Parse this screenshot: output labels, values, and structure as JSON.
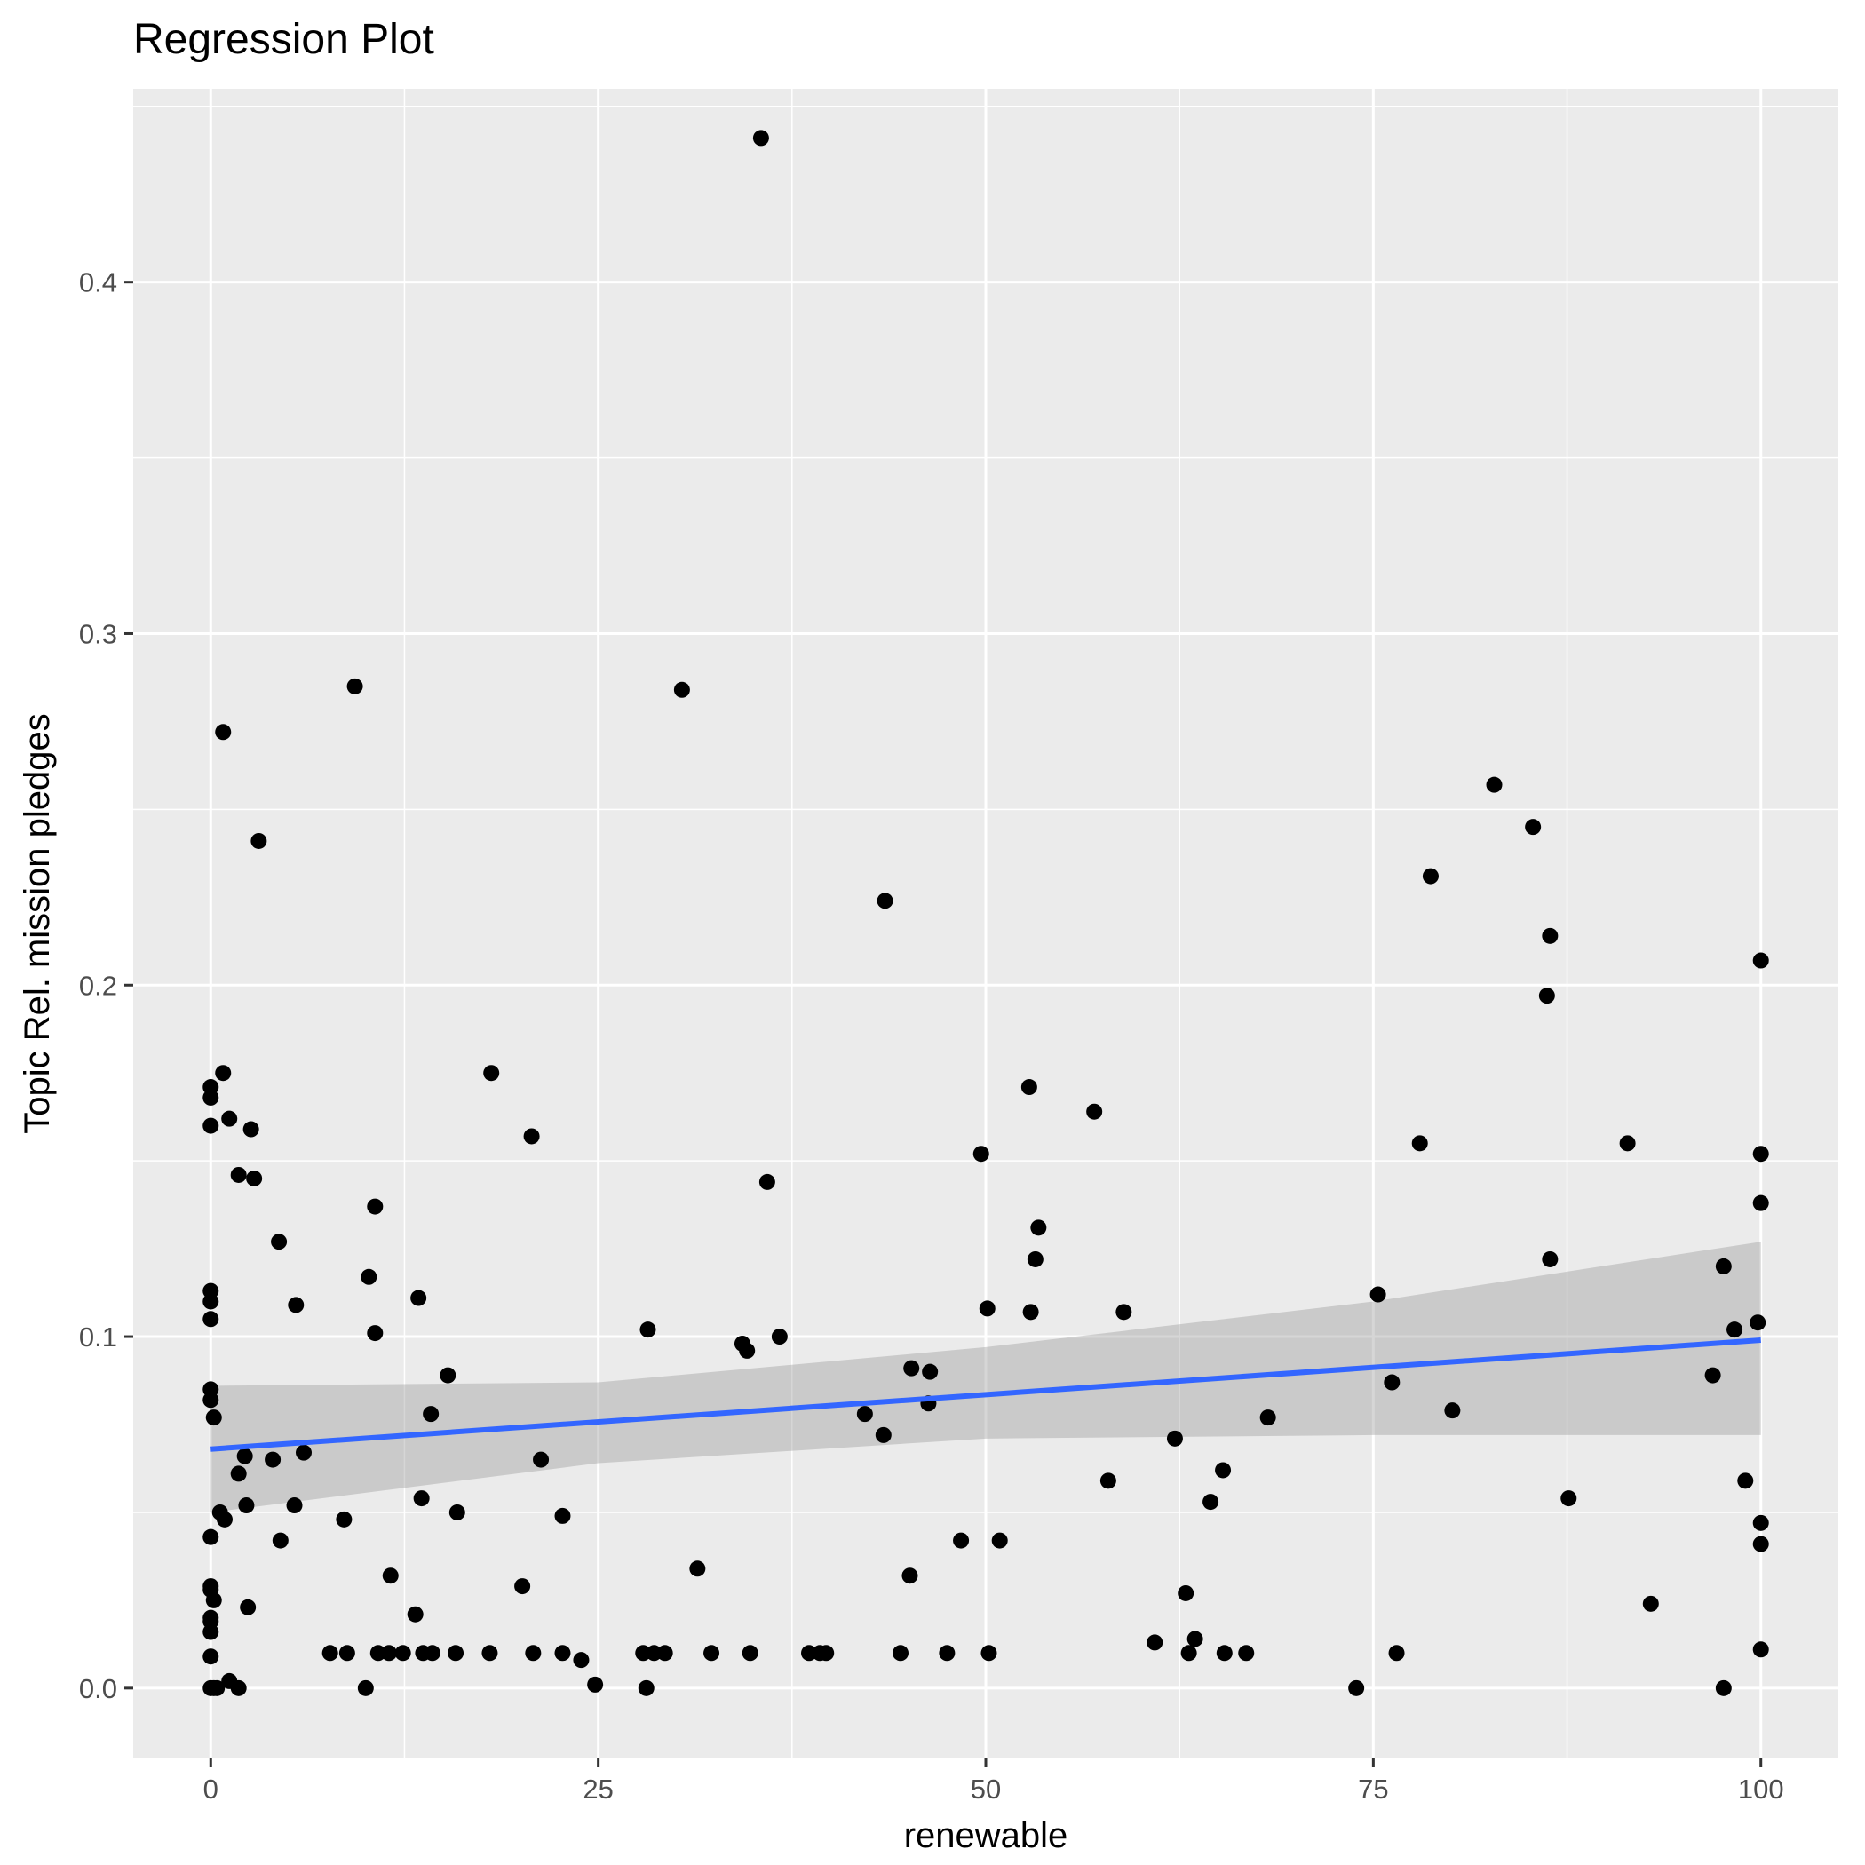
{
  "chart_data": {
    "type": "scatter",
    "title": "Regression Plot",
    "xlabel": "renewable",
    "ylabel": "Topic Rel. mission pledges",
    "xlim": [
      -5,
      105
    ],
    "ylim": [
      -0.02,
      0.455
    ],
    "x_ticks": [
      0,
      25,
      50,
      75,
      100
    ],
    "x_tick_labels": [
      "0",
      "25",
      "50",
      "75",
      "100"
    ],
    "y_ticks": [
      0.0,
      0.1,
      0.2,
      0.3,
      0.4
    ],
    "y_tick_labels": [
      "0.0",
      "0.1",
      "0.2",
      "0.3",
      "0.4"
    ],
    "grid": true,
    "colors": {
      "panel": "#ebebeb",
      "grid": "#ffffff",
      "points": "#000000",
      "fit_line": "#3366ff",
      "confidence_band": "#999999"
    },
    "fit": {
      "x": [
        0,
        100
      ],
      "y": [
        0.068,
        0.099
      ],
      "ci_x": [
        0,
        25,
        50,
        75,
        100
      ],
      "ci_lower": [
        0.05,
        0.064,
        0.071,
        0.072,
        0.072
      ],
      "ci_upper": [
        0.086,
        0.087,
        0.097,
        0.11,
        0.127
      ]
    },
    "points": [
      [
        35.5,
        0.441
      ],
      [
        9.3,
        0.285
      ],
      [
        30.4,
        0.284
      ],
      [
        0.8,
        0.272
      ],
      [
        3.1,
        0.241
      ],
      [
        82.8,
        0.257
      ],
      [
        85.3,
        0.245
      ],
      [
        78.7,
        0.231
      ],
      [
        43.5,
        0.224
      ],
      [
        86.4,
        0.214
      ],
      [
        100,
        0.207
      ],
      [
        86.2,
        0.197
      ],
      [
        0.0,
        0.171
      ],
      [
        0.0,
        0.168
      ],
      [
        0.8,
        0.175
      ],
      [
        18.1,
        0.175
      ],
      [
        52.8,
        0.171
      ],
      [
        57.0,
        0.164
      ],
      [
        1.2,
        0.162
      ],
      [
        0.0,
        0.16
      ],
      [
        2.6,
        0.159
      ],
      [
        20.7,
        0.157
      ],
      [
        78.0,
        0.155
      ],
      [
        91.4,
        0.155
      ],
      [
        49.7,
        0.152
      ],
      [
        100,
        0.152
      ],
      [
        1.8,
        0.146
      ],
      [
        2.8,
        0.145
      ],
      [
        35.9,
        0.144
      ],
      [
        10.6,
        0.137
      ],
      [
        100,
        0.138
      ],
      [
        53.4,
        0.131
      ],
      [
        4.4,
        0.127
      ],
      [
        53.2,
        0.122
      ],
      [
        86.4,
        0.122
      ],
      [
        97.6,
        0.12
      ],
      [
        10.2,
        0.117
      ],
      [
        0.0,
        0.113
      ],
      [
        0.0,
        0.11
      ],
      [
        13.4,
        0.111
      ],
      [
        75.3,
        0.112
      ],
      [
        5.5,
        0.109
      ],
      [
        50.1,
        0.108
      ],
      [
        52.9,
        0.107
      ],
      [
        58.9,
        0.107
      ],
      [
        0.0,
        0.105
      ],
      [
        99.8,
        0.104
      ],
      [
        98.3,
        0.102
      ],
      [
        10.6,
        0.101
      ],
      [
        28.2,
        0.102
      ],
      [
        36.7,
        0.1
      ],
      [
        34.3,
        0.098
      ],
      [
        34.6,
        0.096
      ],
      [
        45.2,
        0.091
      ],
      [
        46.4,
        0.09
      ],
      [
        96.9,
        0.089
      ],
      [
        15.3,
        0.089
      ],
      [
        76.2,
        0.087
      ],
      [
        0.0,
        0.085
      ],
      [
        0.0,
        0.082
      ],
      [
        46.3,
        0.081
      ],
      [
        80.1,
        0.079
      ],
      [
        14.2,
        0.078
      ],
      [
        42.2,
        0.078
      ],
      [
        0.2,
        0.077
      ],
      [
        68.2,
        0.077
      ],
      [
        43.4,
        0.072
      ],
      [
        62.2,
        0.071
      ],
      [
        6.0,
        0.067
      ],
      [
        2.2,
        0.066
      ],
      [
        4.0,
        0.065
      ],
      [
        21.3,
        0.065
      ],
      [
        1.8,
        0.061
      ],
      [
        65.3,
        0.062
      ],
      [
        99.0,
        0.059
      ],
      [
        57.9,
        0.059
      ],
      [
        87.6,
        0.054
      ],
      [
        13.6,
        0.054
      ],
      [
        64.5,
        0.053
      ],
      [
        5.4,
        0.052
      ],
      [
        2.3,
        0.052
      ],
      [
        15.9,
        0.05
      ],
      [
        0.6,
        0.05
      ],
      [
        0.9,
        0.048
      ],
      [
        22.7,
        0.049
      ],
      [
        8.6,
        0.048
      ],
      [
        100,
        0.047
      ],
      [
        0.0,
        0.043
      ],
      [
        4.5,
        0.042
      ],
      [
        48.4,
        0.042
      ],
      [
        50.9,
        0.042
      ],
      [
        100,
        0.041
      ],
      [
        31.4,
        0.034
      ],
      [
        11.6,
        0.032
      ],
      [
        45.1,
        0.032
      ],
      [
        0.0,
        0.029
      ],
      [
        0.0,
        0.028
      ],
      [
        20.1,
        0.029
      ],
      [
        62.9,
        0.027
      ],
      [
        0.2,
        0.025
      ],
      [
        92.9,
        0.024
      ],
      [
        2.4,
        0.023
      ],
      [
        13.2,
        0.021
      ],
      [
        0.0,
        0.02
      ],
      [
        0.0,
        0.019
      ],
      [
        0.0,
        0.016
      ],
      [
        60.9,
        0.013
      ],
      [
        63.5,
        0.014
      ],
      [
        0.0,
        0.009
      ],
      [
        100,
        0.011
      ],
      [
        7.7,
        0.01
      ],
      [
        8.8,
        0.01
      ],
      [
        10.8,
        0.01
      ],
      [
        11.5,
        0.01
      ],
      [
        12.4,
        0.01
      ],
      [
        13.7,
        0.01
      ],
      [
        14.3,
        0.01
      ],
      [
        15.8,
        0.01
      ],
      [
        18.0,
        0.01
      ],
      [
        20.8,
        0.01
      ],
      [
        22.7,
        0.01
      ],
      [
        27.9,
        0.01
      ],
      [
        28.6,
        0.01
      ],
      [
        29.3,
        0.01
      ],
      [
        32.3,
        0.01
      ],
      [
        34.8,
        0.01
      ],
      [
        38.6,
        0.01
      ],
      [
        39.3,
        0.01
      ],
      [
        39.7,
        0.01
      ],
      [
        44.5,
        0.01
      ],
      [
        47.5,
        0.01
      ],
      [
        50.2,
        0.01
      ],
      [
        63.1,
        0.01
      ],
      [
        65.4,
        0.01
      ],
      [
        66.8,
        0.01
      ],
      [
        76.5,
        0.01
      ],
      [
        23.9,
        0.008
      ],
      [
        1.2,
        0.002
      ],
      [
        24.8,
        0.001
      ],
      [
        0.0,
        0.0
      ],
      [
        0.2,
        0.0
      ],
      [
        0.4,
        0.0
      ],
      [
        1.8,
        0.0
      ],
      [
        10.0,
        0.0
      ],
      [
        28.1,
        0.0
      ],
      [
        73.9,
        0.0
      ],
      [
        97.6,
        0.0
      ]
    ]
  }
}
